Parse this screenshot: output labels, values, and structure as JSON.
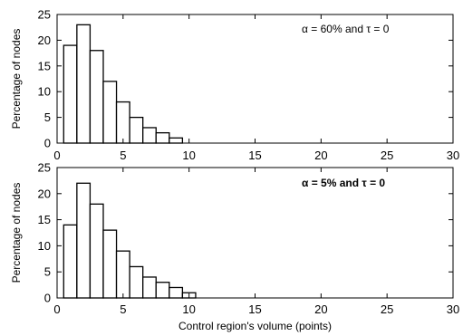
{
  "chart_data": [
    {
      "type": "bar",
      "annotation": "α = 60% and τ = 0",
      "annotation_bold": false,
      "ylabel": "Percentage of nodes",
      "xlabel": "",
      "xlim": [
        0,
        30
      ],
      "ylim": [
        0,
        25
      ],
      "xticks": [
        0,
        5,
        10,
        15,
        20,
        25,
        30
      ],
      "yticks": [
        0,
        5,
        10,
        15,
        20,
        25
      ],
      "bin_width": 1,
      "x": [
        1,
        2,
        3,
        4,
        5,
        6,
        7,
        8,
        9
      ],
      "values": [
        19,
        23,
        18,
        12,
        8,
        5,
        3,
        2,
        1
      ]
    },
    {
      "type": "bar",
      "annotation": "α = 5% and τ = 0",
      "annotation_bold": true,
      "ylabel": "Percentage of nodes",
      "xlabel": "Control region's volume (points)",
      "xlim": [
        0,
        30
      ],
      "ylim": [
        0,
        25
      ],
      "xticks": [
        0,
        5,
        10,
        15,
        20,
        25,
        30
      ],
      "yticks": [
        0,
        5,
        10,
        15,
        20,
        25
      ],
      "bin_width": 1,
      "x": [
        1,
        2,
        3,
        4,
        5,
        6,
        7,
        8,
        9,
        10
      ],
      "values": [
        14,
        22,
        18,
        13,
        9,
        6,
        4,
        3,
        2,
        1
      ]
    }
  ]
}
